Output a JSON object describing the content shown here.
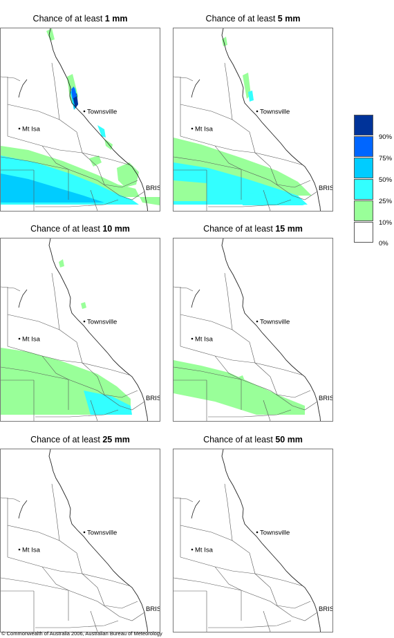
{
  "panels": [
    {
      "title_prefix": "Chance of at least ",
      "title_amount": "1 mm",
      "level": 1
    },
    {
      "title_prefix": "Chance of at least ",
      "title_amount": "5 mm",
      "level": 2
    },
    {
      "title_prefix": "Chance of at least ",
      "title_amount": "10 mm",
      "level": 3
    },
    {
      "title_prefix": "Chance of at least ",
      "title_amount": "15 mm",
      "level": 4
    },
    {
      "title_prefix": "Chance of at least ",
      "title_amount": "25 mm",
      "level": 5
    },
    {
      "title_prefix": "Chance of at least ",
      "title_amount": "50 mm",
      "level": 6
    }
  ],
  "towns": {
    "townsville": "Townsville",
    "mt_isa": "Mt Isa",
    "brisbane": "BRIS"
  },
  "legend": {
    "levels": [
      {
        "color": "#003399",
        "label": "90%"
      },
      {
        "color": "#0066ff",
        "label": "75%"
      },
      {
        "color": "#00ccff",
        "label": "50%"
      },
      {
        "color": "#33ffff",
        "label": "25%"
      },
      {
        "color": "#99ff99",
        "label": "10%"
      },
      {
        "color": "#ffffff",
        "label": "0%"
      }
    ]
  },
  "copyright": "© Commonwealth of Australia 2006, Australian Bureau of Meteorology"
}
